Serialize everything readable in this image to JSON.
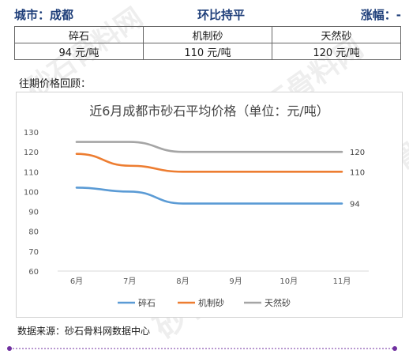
{
  "header": {
    "city": "城市：成都",
    "trend": "环比持平",
    "change": "涨幅：-"
  },
  "table": {
    "columns": [
      "碎石",
      "机制砂",
      "天然砂"
    ],
    "prices": [
      "94 元/吨",
      "110 元/吨",
      "120 元/吨"
    ]
  },
  "review_label": "往期价格回顾：",
  "source": "数据来源：砂石骨料网数据中心",
  "watermark": "砂石骨料网",
  "chart_data": {
    "type": "line",
    "title": "近6月成都市砂石平均价格（单位：元/吨）",
    "categories": [
      "6月",
      "7月",
      "8月",
      "9月",
      "10月",
      "11月"
    ],
    "ylim": [
      60,
      130
    ],
    "yticks": [
      60,
      70,
      80,
      90,
      100,
      110,
      120,
      130
    ],
    "grid": false,
    "legend_position": "bottom",
    "series": [
      {
        "name": "碎石",
        "values": [
          102,
          100,
          94,
          94,
          94,
          94
        ],
        "end_label": "94",
        "color": "#5b9bd5"
      },
      {
        "name": "机制砂",
        "values": [
          119,
          113,
          110,
          110,
          110,
          110
        ],
        "end_label": "110",
        "color": "#ed7d31"
      },
      {
        "name": "天然砂",
        "values": [
          125,
          125,
          120,
          120,
          120,
          120
        ],
        "end_label": "120",
        "color": "#a5a5a5"
      }
    ]
  }
}
